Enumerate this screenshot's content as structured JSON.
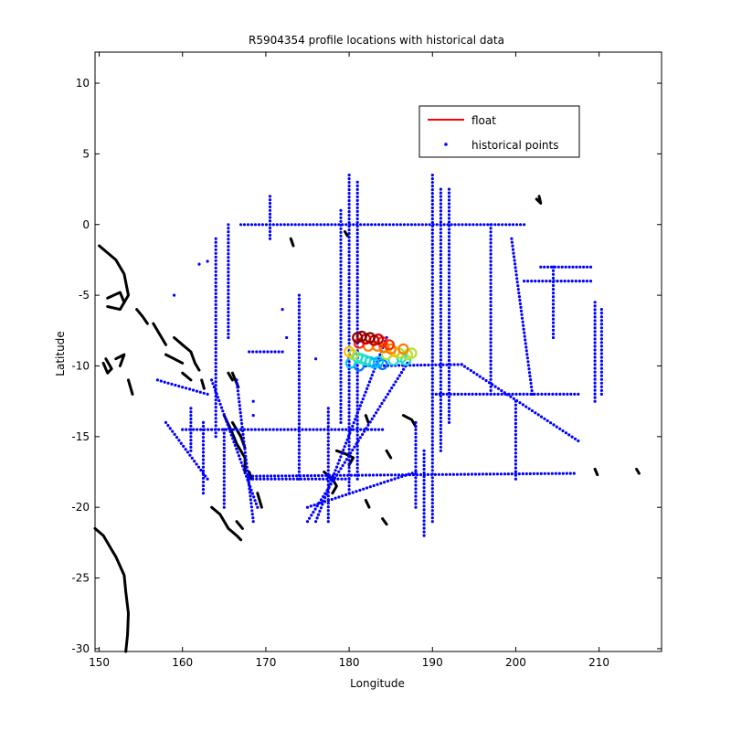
{
  "chart_data": {
    "type": "scatter",
    "title": "R5904354 profile locations with historical data",
    "xlabel": "Longitude",
    "ylabel": "Latitude",
    "xlim": [
      149.5,
      217.5
    ],
    "ylim": [
      -30.2,
      12.2
    ],
    "xticks": [
      150,
      160,
      170,
      180,
      190,
      200,
      210
    ],
    "yticks": [
      10,
      5,
      0,
      -5,
      -10,
      -15,
      -20,
      -25,
      -30
    ],
    "grid": false,
    "legend": {
      "placement": "top-right",
      "entries": [
        {
          "label": "float",
          "color": "#ff0000",
          "marker": "line"
        },
        {
          "label": "historical points",
          "color": "#0000ff",
          "marker": "dot"
        }
      ]
    },
    "colors": {
      "historical": "#0000ff",
      "coast": "#000000",
      "float_scale": [
        "#0072ff",
        "#00bfff",
        "#22e0c8",
        "#b8e032",
        "#ffc000",
        "#ff7a00",
        "#ff2a00",
        "#c80000",
        "#8b0000"
      ]
    },
    "series": [
      {
        "name": "historical points",
        "kind": "lines",
        "segments": [
          [
            [
              180,
              3.5
            ],
            [
              180,
              -19
            ]
          ],
          [
            [
              179,
              1
            ],
            [
              179,
              -14
            ]
          ],
          [
            [
              181,
              3
            ],
            [
              181,
              -18
            ]
          ],
          [
            [
              190,
              3.5
            ],
            [
              190,
              -21
            ]
          ],
          [
            [
              191,
              2.5
            ],
            [
              191,
              -16
            ]
          ],
          [
            [
              192,
              2.5
            ],
            [
              192,
              -14
            ]
          ],
          [
            [
              167,
              0
            ],
            [
              201,
              0
            ]
          ],
          [
            [
              182,
              -10
            ],
            [
              193.5,
              -9.9
            ],
            [
              207.5,
              -15.3
            ]
          ],
          [
            [
              190,
              -12
            ],
            [
              207.5,
              -12
            ]
          ],
          [
            [
              160,
              -14.5
            ],
            [
              184,
              -14.5
            ]
          ],
          [
            [
              168,
              -17.8
            ],
            [
              207,
              -17.6
            ]
          ],
          [
            [
              168,
              -18
            ],
            [
              180,
              -18
            ]
          ],
          [
            [
              164,
              -1
            ],
            [
              164,
              -15
            ]
          ],
          [
            [
              165.5,
              0
            ],
            [
              165.5,
              -8
            ]
          ],
          [
            [
              209.5,
              -5.5
            ],
            [
              209.5,
              -12.5
            ]
          ],
          [
            [
              210.3,
              -6
            ],
            [
              210.3,
              -12
            ]
          ],
          [
            [
              203,
              -3
            ],
            [
              209,
              -3
            ]
          ],
          [
            [
              204.5,
              -3
            ],
            [
              204.5,
              -8
            ]
          ],
          [
            [
              201,
              -4
            ],
            [
              209,
              -4
            ]
          ],
          [
            [
              199.5,
              -1
            ],
            [
              202,
              -12
            ]
          ],
          [
            [
              197,
              0
            ],
            [
              197,
              -12
            ]
          ],
          [
            [
              200,
              -12.5
            ],
            [
              200,
              -18
            ]
          ],
          [
            [
              184.5,
              -8
            ],
            [
              176,
              -21
            ]
          ],
          [
            [
              187,
              -9.8
            ],
            [
              175,
              -21
            ]
          ],
          [
            [
              188,
              -17.5
            ],
            [
              175,
              -20
            ]
          ],
          [
            [
              170.5,
              2
            ],
            [
              170.5,
              -1
            ]
          ],
          [
            [
              174,
              -5
            ],
            [
              174,
              -18
            ]
          ],
          [
            [
              177.5,
              -13
            ],
            [
              177.5,
              -21
            ]
          ],
          [
            [
              188,
              -14
            ],
            [
              188,
              -20
            ]
          ],
          [
            [
              189,
              -16
            ],
            [
              189,
              -22
            ]
          ],
          [
            [
              161,
              -13
            ],
            [
              161,
              -16
            ]
          ],
          [
            [
              157,
              -11
            ],
            [
              163,
              -12
            ]
          ],
          [
            [
              163.5,
              -11
            ],
            [
              169,
              -20
            ]
          ],
          [
            [
              165,
              -14.5
            ],
            [
              165,
              -20
            ]
          ],
          [
            [
              162.5,
              -14
            ],
            [
              162.5,
              -19
            ]
          ],
          [
            [
              158,
              -14
            ],
            [
              163,
              -18
            ]
          ],
          [
            [
              166.5,
              -11
            ],
            [
              168.5,
              -21
            ]
          ],
          [
            [
              168,
              -9
            ],
            [
              172,
              -9
            ]
          ]
        ],
        "points": [
          [
            159,
            -5
          ],
          [
            162,
            -2.8
          ],
          [
            163,
            -2.6
          ],
          [
            172.5,
            -8
          ],
          [
            168.5,
            -12.5
          ],
          [
            168.5,
            -13.5
          ],
          [
            176,
            -9.5
          ],
          [
            172,
            -6
          ]
        ]
      },
      {
        "name": "float",
        "kind": "cluster",
        "points": [
          [
            181,
            -8
          ],
          [
            181.5,
            -7.9
          ],
          [
            182,
            -8.1
          ],
          [
            182.5,
            -8
          ],
          [
            183,
            -8.2
          ],
          [
            183.5,
            -8.1
          ],
          [
            184,
            -8.3
          ],
          [
            181.2,
            -8.4
          ],
          [
            182.3,
            -8.6
          ],
          [
            183.4,
            -8.6
          ],
          [
            184.2,
            -8.7
          ],
          [
            184.8,
            -8.5
          ],
          [
            185,
            -8.8
          ],
          [
            185.5,
            -9
          ],
          [
            184.5,
            -9.2
          ],
          [
            186,
            -9.1
          ],
          [
            185.3,
            -9.6
          ],
          [
            186.3,
            -9.4
          ],
          [
            186.8,
            -9.6
          ],
          [
            187,
            -9.2
          ],
          [
            187.5,
            -9.1
          ],
          [
            186.5,
            -8.8
          ],
          [
            180,
            -9.0
          ],
          [
            180.5,
            -9.2
          ],
          [
            181,
            -9.4
          ],
          [
            181.5,
            -9.5
          ],
          [
            182,
            -9.6
          ],
          [
            182.5,
            -9.7
          ],
          [
            183,
            -9.8
          ],
          [
            183.5,
            -9.7
          ],
          [
            184,
            -9.9
          ],
          [
            180.2,
            -9.8
          ],
          [
            181.2,
            -10.0
          ]
        ]
      },
      {
        "name": "coastline",
        "kind": "outlines",
        "segments": [
          [
            [
              150,
              -1.5
            ],
            [
              152,
              -2.5
            ],
            [
              153,
              -3.5
            ],
            [
              153.5,
              -5
            ],
            [
              152.5,
              -6
            ],
            [
              151,
              -5.8
            ]
          ],
          [
            [
              151,
              -5.2
            ],
            [
              152.5,
              -4.8
            ],
            [
              153,
              -5.5
            ]
          ],
          [
            [
              150.5,
              -9.8
            ],
            [
              151,
              -10.5
            ],
            [
              151.5,
              -10.2
            ],
            [
              150.8,
              -9.5
            ]
          ],
          [
            [
              152,
              -9.5
            ],
            [
              153,
              -9.2
            ],
            [
              152.5,
              -10
            ]
          ],
          [
            [
              153.5,
              -11
            ],
            [
              154,
              -12
            ]
          ],
          [
            [
              154.5,
              -6
            ],
            [
              155.2,
              -6.5
            ],
            [
              155.8,
              -7
            ]
          ],
          [
            [
              156.5,
              -7
            ],
            [
              157.5,
              -8
            ],
            [
              158,
              -8.5
            ]
          ],
          [
            [
              159,
              -8
            ],
            [
              160,
              -8.5
            ],
            [
              161,
              -9
            ],
            [
              161.5,
              -9.8
            ],
            [
              162,
              -10.3
            ]
          ],
          [
            [
              158,
              -9.2
            ],
            [
              159,
              -9.5
            ],
            [
              160,
              -9.8
            ]
          ],
          [
            [
              160,
              -10.5
            ],
            [
              161,
              -11
            ]
          ],
          [
            [
              162.3,
              -11
            ],
            [
              162.6,
              -11.6
            ]
          ],
          [
            [
              165.5,
              -10.5
            ],
            [
              166,
              -11
            ]
          ],
          [
            [
              166,
              -10.5
            ],
            [
              166.7,
              -11.5
            ]
          ],
          [
            [
              165,
              -13.5
            ],
            [
              165.8,
              -14.5
            ],
            [
              166.5,
              -15.5
            ],
            [
              167.5,
              -16.5
            ],
            [
              167.5,
              -17.5
            ]
          ],
          [
            [
              166,
              -14
            ],
            [
              167,
              -15
            ],
            [
              167.5,
              -15.8
            ]
          ],
          [
            [
              168,
              -17.5
            ],
            [
              168.3,
              -18
            ]
          ],
          [
            [
              169,
              -19
            ],
            [
              169.5,
              -20
            ]
          ],
          [
            [
              163.5,
              -20
            ],
            [
              164.5,
              -20.5
            ],
            [
              165.5,
              -21.5
            ],
            [
              166.5,
              -22
            ],
            [
              167,
              -22.3
            ]
          ],
          [
            [
              166.5,
              -21
            ],
            [
              167.2,
              -21.5
            ]
          ],
          [
            [
              177,
              -17.5
            ],
            [
              178,
              -18
            ],
            [
              178.5,
              -18.5
            ],
            [
              178,
              -19
            ]
          ],
          [
            [
              178.5,
              -16
            ],
            [
              179.5,
              -16.2
            ],
            [
              180.5,
              -16.5
            ],
            [
              180,
              -17
            ]
          ],
          [
            [
              186.5,
              -13.5
            ],
            [
              187.5,
              -13.8
            ],
            [
              188,
              -14.3
            ]
          ],
          [
            [
              184,
              -20.8
            ],
            [
              184.5,
              -21.2
            ]
          ],
          [
            [
              182,
              -19.5
            ],
            [
              182.4,
              -20
            ]
          ],
          [
            [
              184.5,
              -16
            ],
            [
              185,
              -16.5
            ]
          ],
          [
            [
              202.5,
              1.8
            ],
            [
              203,
              1.5
            ],
            [
              202.8,
              2
            ]
          ],
          [
            [
              209.5,
              -17.3
            ],
            [
              209.8,
              -17.7
            ]
          ],
          [
            [
              214.5,
              -17.3
            ],
            [
              214.8,
              -17.6
            ]
          ],
          [
            [
              149.5,
              -21.5
            ],
            [
              150.5,
              -22
            ],
            [
              151.5,
              -23
            ],
            [
              152,
              -23.5
            ],
            [
              153,
              -24.8
            ],
            [
              153.2,
              -26
            ],
            [
              153.5,
              -27.5
            ],
            [
              153.4,
              -29
            ],
            [
              153.2,
              -30.2
            ]
          ],
          [
            [
              179.5,
              -0.5
            ],
            [
              179.8,
              -0.8
            ]
          ],
          [
            [
              182,
              -13.5
            ],
            [
              182.3,
              -14
            ]
          ],
          [
            [
              173,
              -1
            ],
            [
              173.3,
              -1.5
            ]
          ]
        ]
      }
    ]
  }
}
